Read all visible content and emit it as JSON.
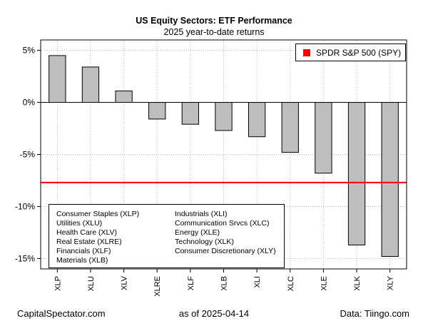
{
  "header": {
    "title": "US Equity Sectors: ETF Performance",
    "subtitle": "2025 year-to-date returns"
  },
  "footer": {
    "left": "CapitalSpectator.com",
    "center": "as of   2025-04-14",
    "right": "Data: Tiingo.com"
  },
  "chart_data": {
    "type": "bar",
    "categories": [
      "XLP",
      "XLU",
      "XLV",
      "XLRE",
      "XLF",
      "XLB",
      "XLI",
      "XLC",
      "XLE",
      "XLK",
      "XLY"
    ],
    "values": [
      4.5,
      3.4,
      1.1,
      -1.6,
      -2.1,
      -2.7,
      -3.3,
      -4.8,
      -6.8,
      -13.7,
      -14.8
    ],
    "ylim": [
      -16,
      6
    ],
    "y_ticks": [
      5,
      0,
      -5,
      -10,
      -15
    ],
    "y_tick_labels": [
      "5%",
      "0%",
      "-5%",
      "-10%",
      "-15%"
    ],
    "bar_color": "#bebebe",
    "grid": true,
    "reference_line": {
      "label": "SPDR S&P 500 (SPY)",
      "value": -7.7,
      "color": "#ff0000"
    },
    "legend_position": "top-right",
    "key_entries": [
      "Consumer Staples (XLP)",
      "Utilities (XLU)",
      "Health Care (XLV)",
      "Real Estate (XLRE)",
      "Financials (XLF)",
      "Materials (XLB)",
      "Industrials (XLI)",
      "Communication Srvcs (XLC)",
      "Energy (XLE)",
      "Technology (XLK)",
      "Consumer Discretionary (XLY)"
    ]
  }
}
